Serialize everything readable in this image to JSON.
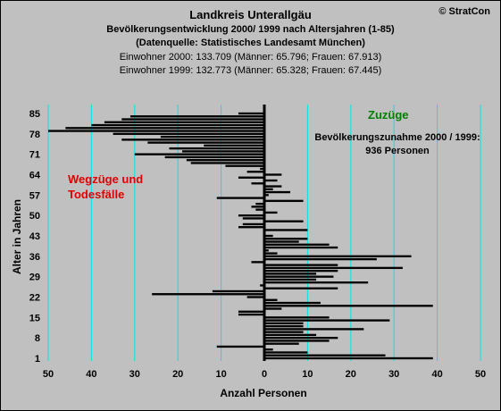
{
  "header": {
    "title": "Landkreis Unterallgäu",
    "subtitle1": "Bevölkerungsentwicklung 2000/ 1999  nach Altersjahren (1-85)",
    "subtitle2": "(Datenquelle: Statistisches Landesamt München)",
    "line1": "Einwohner 2000: 133.709  (Männer: 65.796; Frauen: 67.913)",
    "line2": "Einwohner 1999: 132.773  (Männer: 65.328; Frauen: 67.445)"
  },
  "copyright": "© StratCon",
  "annotations": {
    "zuzuege": "Zuzüge",
    "zunahme_line1": "Bevölkerungszunahme 2000 / 1999:",
    "zunahme_line2": "936 Personen",
    "wegzuege_line1": "Wegzüge und",
    "wegzuege_line2": "Todesfälle"
  },
  "colors": {
    "background": "#c0c0c0",
    "bars": "#000000",
    "gridlines": "#00e5e5",
    "zuzuege": "#008000",
    "wegzuege": "#e00000"
  },
  "chart_data": {
    "type": "bar",
    "orientation": "horizontal",
    "xlabel": "Anzahl Personen",
    "ylabel": "Alter in Jahren",
    "xlim": [
      -50,
      50
    ],
    "ylim": [
      1,
      85
    ],
    "x_ticks": [
      "50",
      "40",
      "30",
      "20",
      "10",
      "0",
      "10",
      "20",
      "30",
      "40",
      "50"
    ],
    "y_ticks": [
      1,
      8,
      15,
      22,
      29,
      36,
      43,
      50,
      57,
      64,
      71,
      78,
      85
    ],
    "grid": true,
    "ages": [
      1,
      2,
      3,
      4,
      5,
      6,
      7,
      8,
      9,
      10,
      11,
      12,
      13,
      14,
      15,
      16,
      17,
      18,
      19,
      20,
      21,
      22,
      23,
      24,
      25,
      26,
      27,
      28,
      29,
      30,
      31,
      32,
      33,
      34,
      35,
      36,
      37,
      38,
      39,
      40,
      41,
      42,
      43,
      44,
      45,
      46,
      47,
      48,
      49,
      50,
      51,
      52,
      53,
      54,
      55,
      56,
      57,
      58,
      59,
      60,
      61,
      62,
      63,
      64,
      65,
      66,
      67,
      68,
      69,
      70,
      71,
      72,
      73,
      74,
      75,
      76,
      77,
      78,
      79,
      80,
      81,
      82,
      83,
      84,
      85
    ],
    "values": [
      39,
      28,
      10,
      2,
      -11,
      8,
      15,
      17,
      12,
      9,
      23,
      9,
      9,
      29,
      15,
      -6,
      -6,
      4,
      39,
      13,
      3,
      -4,
      -26,
      -12,
      17,
      -1,
      24,
      12,
      16,
      12,
      17,
      32,
      17,
      -3,
      26,
      34,
      3,
      1,
      17,
      15,
      8,
      10,
      2,
      0,
      10,
      -6,
      -5,
      9,
      -5,
      -6,
      3,
      -2,
      -3,
      -2,
      9,
      -11,
      1,
      6,
      2,
      4,
      -3,
      3,
      -6,
      4,
      -4,
      -1,
      -9,
      -17,
      -18,
      -23,
      -30,
      -19,
      -22,
      -14,
      -27,
      -33,
      -24,
      -35,
      -50,
      -46,
      -40,
      -37,
      -33,
      -31,
      -6
    ]
  }
}
